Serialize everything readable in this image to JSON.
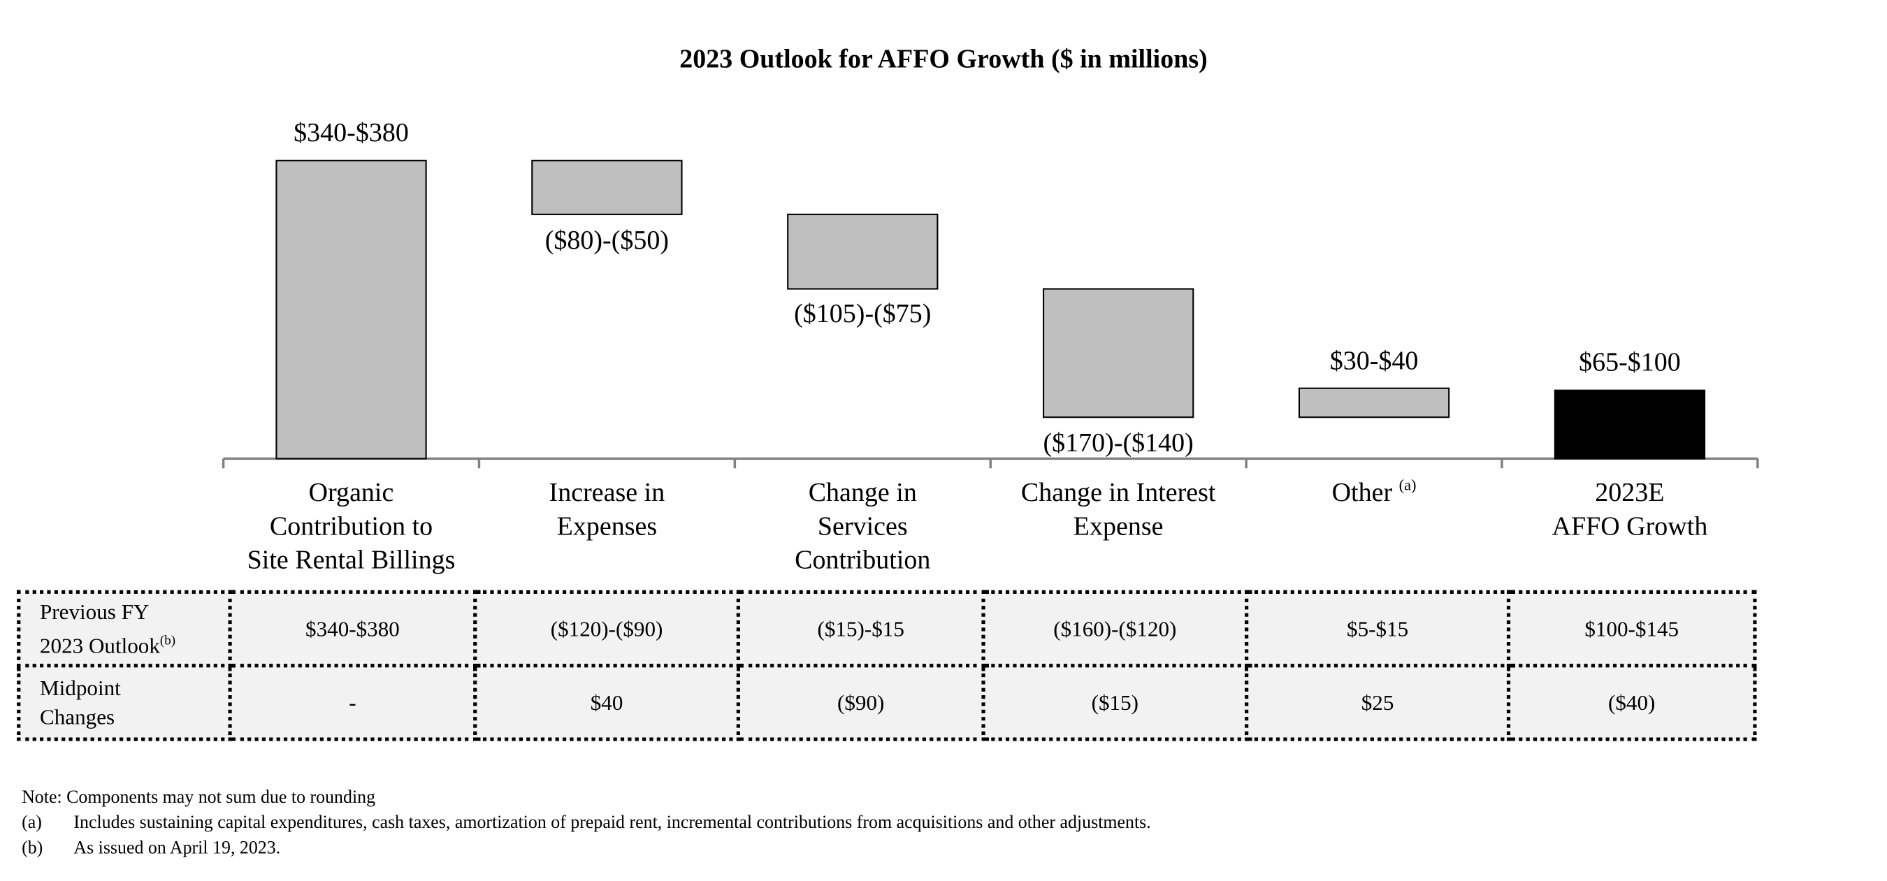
{
  "chart_data": {
    "type": "bar",
    "subtype": "waterfall",
    "title": "2023 Outlook for AFFO Growth ($ in millions)",
    "categories": [
      [
        "Organic",
        "Contribution to",
        "Site Rental Billings"
      ],
      [
        "Increase in",
        "Expenses"
      ],
      [
        "Change in",
        "Services",
        "Contribution"
      ],
      [
        "Change in Interest",
        "Expense"
      ],
      [
        "Other"
      ],
      [
        "2023E",
        "AFFO Growth"
      ]
    ],
    "category_footnotes": [
      "",
      "",
      "",
      "",
      "(a)",
      ""
    ],
    "ranges": [
      [
        340,
        380
      ],
      [
        -80,
        -50
      ],
      [
        -105,
        -75
      ],
      [
        -170,
        -140
      ],
      [
        30,
        40
      ],
      [
        65,
        100
      ]
    ],
    "data_labels": [
      "$340-$380",
      "($80)-($50)",
      "($105)-($75)",
      "($170)-($140)",
      "$30-$40",
      "$65-$100"
    ],
    "bar_kinds": [
      "total",
      "delta",
      "delta",
      "delta",
      "delta",
      "total"
    ],
    "colors": {
      "delta": "#bfbfbf",
      "total_start": "#bfbfbf",
      "total_end": "#000000"
    },
    "grid": false,
    "legend": "none"
  },
  "table": {
    "rows": [
      {
        "label": [
          "Previous FY",
          "2023 Outlook"
        ],
        "footnote": "(b)",
        "values": [
          "$340-$380",
          "($120)-($90)",
          "($15)-$15",
          "($160)-($120)",
          "$5-$15",
          "$100-$145"
        ]
      },
      {
        "label": [
          "Midpoint",
          "Changes"
        ],
        "footnote": "",
        "values": [
          "-",
          "$40",
          "($90)",
          "($15)",
          "$25",
          "($40)"
        ]
      }
    ],
    "fill": "#f2f2f2"
  },
  "notes": {
    "note": "Note: Components may not sum due to rounding",
    "footnotes": [
      {
        "marker": "(a)",
        "text": "Includes sustaining capital expenditures, cash taxes, amortization of prepaid rent, incremental contributions from acquisitions and other adjustments."
      },
      {
        "marker": "(b)",
        "text": "As issued on April 19, 2023."
      }
    ]
  }
}
